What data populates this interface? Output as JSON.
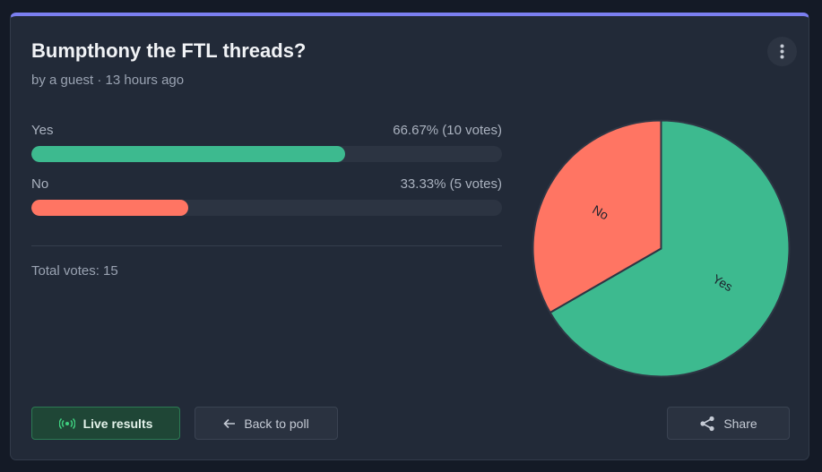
{
  "poll": {
    "title": "Bumpthony the FTL threads?",
    "meta": "by a guest · 13 hours ago",
    "options": [
      {
        "label": "Yes",
        "percent": 66.67,
        "votes": 10,
        "result_label": "66.67% (10 votes)",
        "color": "#3dba8f"
      },
      {
        "label": "No",
        "percent": 33.33,
        "votes": 5,
        "result_label": "33.33% (5 votes)",
        "color": "#ff7563"
      }
    ],
    "total": "Total votes: 15",
    "buttons": {
      "live": "Live results",
      "back": "Back to poll",
      "share": "Share"
    }
  }
}
